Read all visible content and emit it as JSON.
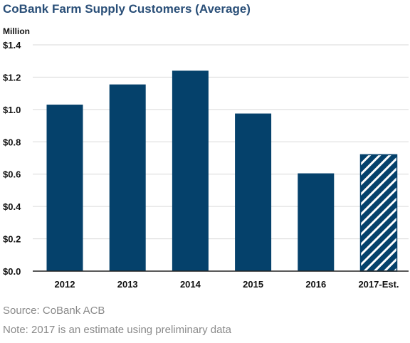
{
  "chart_data": {
    "type": "bar",
    "title": "CoBank Farm Supply Customers (Average)",
    "ylabel": "Million",
    "categories": [
      "2012",
      "2013",
      "2014",
      "2015",
      "2016",
      "2017-Est."
    ],
    "values": [
      1.03,
      1.155,
      1.24,
      0.975,
      0.605,
      0.72
    ],
    "estimate_categories": [
      "2017-Est."
    ],
    "ylim": [
      0,
      1.4
    ],
    "yticks": [
      0,
      0.2,
      0.4,
      0.6,
      0.8,
      1.0,
      1.2,
      1.4
    ],
    "ytick_labels": [
      "$0.0",
      "$0.2",
      "$0.4",
      "$0.6",
      "$0.8",
      "$1.0",
      "$1.2",
      "$1.4"
    ],
    "grid": true,
    "bar_color": "#05416b",
    "hatch_color": "#ffffff",
    "grid_color": "#d9d9d9",
    "axis_color": "#222222",
    "title_color": "#2a4f78",
    "footnote_color": "#8a8a8a"
  },
  "source": "Source: CoBank ACB",
  "note": "Note: 2017 is an estimate using preliminary data"
}
